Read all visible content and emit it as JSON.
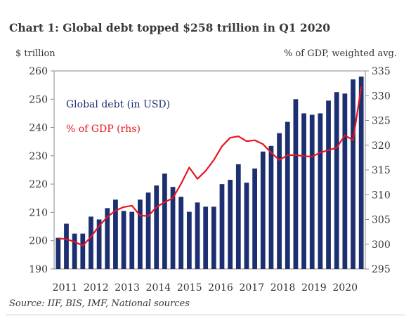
{
  "title": "Chart 1: Global debt topped $258 trillion in Q1 2020",
  "left_axis_unit": "$ trillion",
  "right_axis_unit": "% of GDP, weighted avg.",
  "source": "Source: IIF, BIS, IMF, National sources",
  "colors": {
    "bar": "#1c2f70",
    "line": "#e8151e",
    "axis": "#888888"
  },
  "chart_data": {
    "type": "bar+line",
    "x_labels": [
      "2011",
      "2012",
      "2013",
      "2014",
      "2015",
      "2016",
      "2017",
      "2018",
      "2019",
      "2020"
    ],
    "ylim_left": [
      190,
      260
    ],
    "yticks_left": [
      190,
      200,
      210,
      220,
      230,
      240,
      250,
      260
    ],
    "ylim_right": [
      295,
      335
    ],
    "yticks_right": [
      295,
      300,
      305,
      310,
      315,
      320,
      325,
      330,
      335
    ],
    "series": [
      {
        "name": "Global debt (in USD)",
        "type": "bar",
        "axis": "left",
        "values": [
          201,
          206,
          202.5,
          202.5,
          208.5,
          207.5,
          211.5,
          214.5,
          210.5,
          210.2,
          214.5,
          217,
          219.5,
          223.7,
          219,
          215.5,
          210.2,
          213.5,
          212,
          212,
          220,
          221.5,
          227,
          220.5,
          225.5,
          231.5,
          233.5,
          238,
          242,
          250,
          245,
          244.5,
          245,
          249.5,
          252.5,
          252,
          257,
          258
        ]
      },
      {
        "name": "% of GDP (rhs)",
        "type": "line",
        "axis": "right",
        "values": [
          301.2,
          301,
          300.5,
          299.7,
          301.5,
          303.7,
          305.5,
          306.8,
          307.5,
          307.8,
          305.8,
          305.7,
          307.5,
          308.5,
          309.3,
          312.2,
          315.5,
          313.2,
          314.8,
          317,
          319.8,
          321.5,
          321.8,
          320.8,
          321,
          320.2,
          318.5,
          317,
          318,
          318,
          317.8,
          317.7,
          318.5,
          319,
          319.5,
          322,
          321,
          331.8
        ]
      }
    ],
    "grid": false,
    "legend": "inside top-left"
  }
}
